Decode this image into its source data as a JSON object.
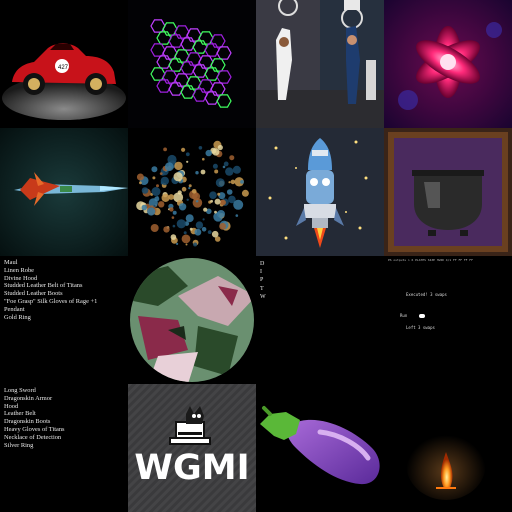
{
  "tiles": [
    {
      "name": "red-racing-car-tile",
      "icon": "red-racing-car",
      "badge": "427"
    },
    {
      "name": "neon-hexagon-lattice-tile",
      "icon": "hexagon-lattice"
    },
    {
      "name": "basketball-dunk-photo-tile",
      "icon": "basketball-players"
    },
    {
      "name": "neon-fractal-flower-tile",
      "icon": "fractal-flower"
    },
    {
      "name": "spaceship-tile",
      "icon": "spaceship"
    },
    {
      "name": "cosmic-sphere-tile",
      "icon": "cosmic-sphere"
    },
    {
      "name": "robot-rocket-tile",
      "icon": "robot-rocket"
    },
    {
      "name": "cauldron-tile",
      "icon": "cauldron"
    },
    {
      "name": "equipment-list-tile",
      "items": [
        "Maul",
        "Linen Robe",
        "Divine Hood",
        "Studded Leather Belt of Titans",
        "Studded Leather Boots",
        "\"Foe Grasp\" Silk Gloves of Rage +1",
        "Pendant",
        "Gold Ring"
      ]
    },
    {
      "name": "camo-planet-tile",
      "icon": "camo-planet"
    },
    {
      "name": "letter-column-tile",
      "letters": [
        "D",
        "I",
        "P",
        "T",
        "W"
      ]
    },
    {
      "name": "terminal-output-tile",
      "header": "PS outputs > 6 PLATES    SIZE 3WID 4/1    FF FF FF FF",
      "lines": [
        "Executed! 3 swaps",
        "Run",
        "Left 3 swaps"
      ]
    },
    {
      "name": "equipment-list-tile-2",
      "items": [
        "Long Sword",
        "Dragonskin Armor",
        "Hood",
        "Leather Belt",
        "Dragonskin Boots",
        "Heavy Gloves of Titans",
        "Necklace of Detection",
        "Silver Ring"
      ]
    },
    {
      "name": "wgmi-cat-tile",
      "icon": "cat-top-hat",
      "text": "WGMI"
    },
    {
      "name": "eggplant-emoji-tile",
      "icon": "eggplant"
    },
    {
      "name": "campfire-night-tile",
      "icon": "campfire"
    }
  ]
}
